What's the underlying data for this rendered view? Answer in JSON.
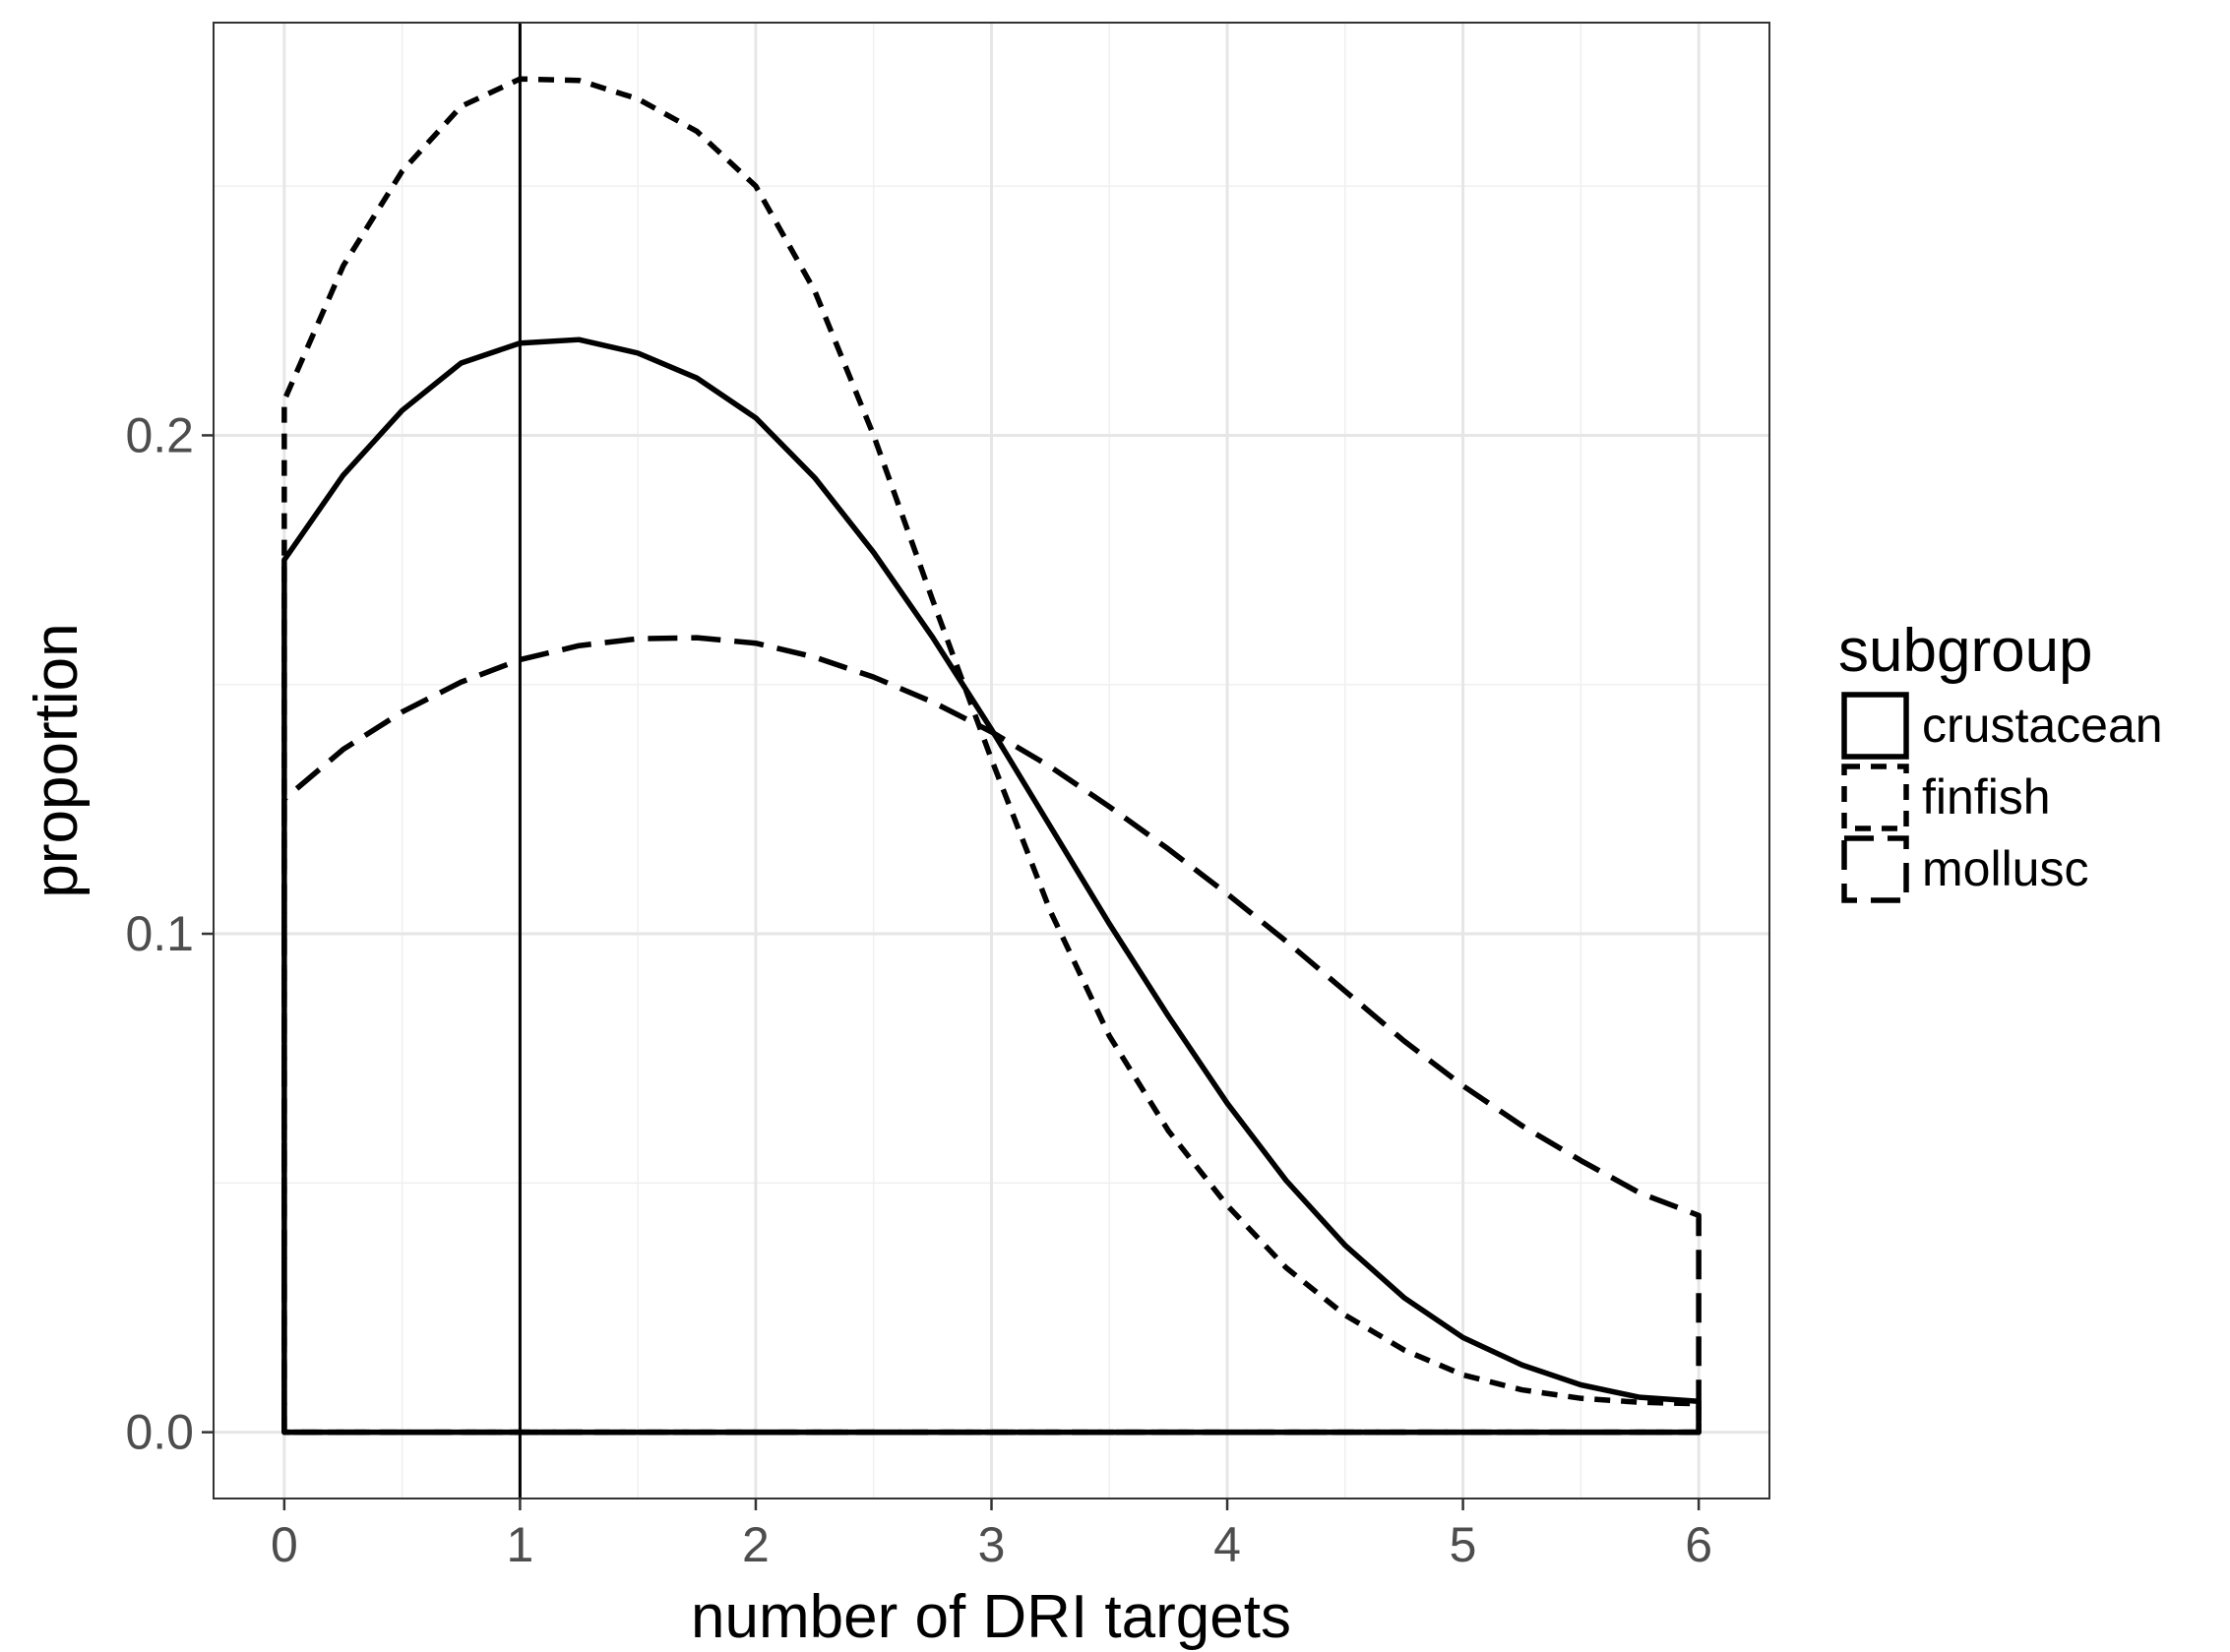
{
  "chart_data": {
    "type": "area",
    "xlabel": "number of DRI targets",
    "ylabel": "proportion",
    "xlim": [
      -0.3,
      6.3
    ],
    "ylim": [
      -0.0133,
      0.2828
    ],
    "x_ticks": [
      "0",
      "1",
      "2",
      "3",
      "4",
      "5",
      "6"
    ],
    "y_ticks": [
      "0.0",
      "0.1",
      "0.2"
    ],
    "grid": true,
    "vline_x": 1,
    "legend": {
      "title": "subgroup",
      "position": "right",
      "items": [
        "crustacean",
        "finfish",
        "mollusc"
      ]
    },
    "series": [
      {
        "name": "crustacean",
        "linetype": "solid",
        "x": [
          0,
          0.25,
          0.5,
          0.75,
          1,
          1.25,
          1.5,
          1.75,
          2,
          2.25,
          2.5,
          2.75,
          3,
          3.25,
          3.5,
          3.75,
          4,
          4.25,
          4.5,
          4.75,
          5,
          5.25,
          5.5,
          5.75,
          6
        ],
        "y": [
          0.175,
          0.192,
          0.205,
          0.2145,
          0.2185,
          0.2192,
          0.2165,
          0.2115,
          0.2035,
          0.1915,
          0.1765,
          0.1595,
          0.141,
          0.1215,
          0.102,
          0.0835,
          0.066,
          0.0505,
          0.0375,
          0.027,
          0.019,
          0.0135,
          0.0095,
          0.007,
          0.0062
        ]
      },
      {
        "name": "finfish",
        "linetype": "dashed",
        "x": [
          0,
          0.25,
          0.5,
          0.75,
          1,
          1.25,
          1.5,
          1.75,
          2,
          2.25,
          2.5,
          2.75,
          3,
          3.25,
          3.5,
          3.75,
          4,
          4.25,
          4.5,
          4.75,
          5,
          5.25,
          5.5,
          5.75,
          6
        ],
        "y": [
          0.207,
          0.234,
          0.253,
          0.266,
          0.2715,
          0.2712,
          0.2675,
          0.261,
          0.25,
          0.229,
          0.2,
          0.167,
          0.135,
          0.1045,
          0.0795,
          0.0605,
          0.0455,
          0.033,
          0.0235,
          0.0165,
          0.0115,
          0.0085,
          0.0068,
          0.006,
          0.0057
        ]
      },
      {
        "name": "mollusc",
        "linetype": "longdash",
        "x": [
          0,
          0.25,
          0.5,
          0.75,
          1,
          1.25,
          1.5,
          1.75,
          2,
          2.25,
          2.5,
          2.75,
          3,
          3.25,
          3.5,
          3.75,
          4,
          4.25,
          4.5,
          4.75,
          5,
          5.25,
          5.5,
          5.75,
          6
        ],
        "y": [
          0.127,
          0.137,
          0.1445,
          0.1505,
          0.155,
          0.1578,
          0.1592,
          0.1594,
          0.1583,
          0.1555,
          0.1515,
          0.1465,
          0.1405,
          0.1335,
          0.1255,
          0.117,
          0.108,
          0.0985,
          0.0885,
          0.0785,
          0.0695,
          0.0615,
          0.0545,
          0.048,
          0.0435
        ]
      }
    ]
  }
}
